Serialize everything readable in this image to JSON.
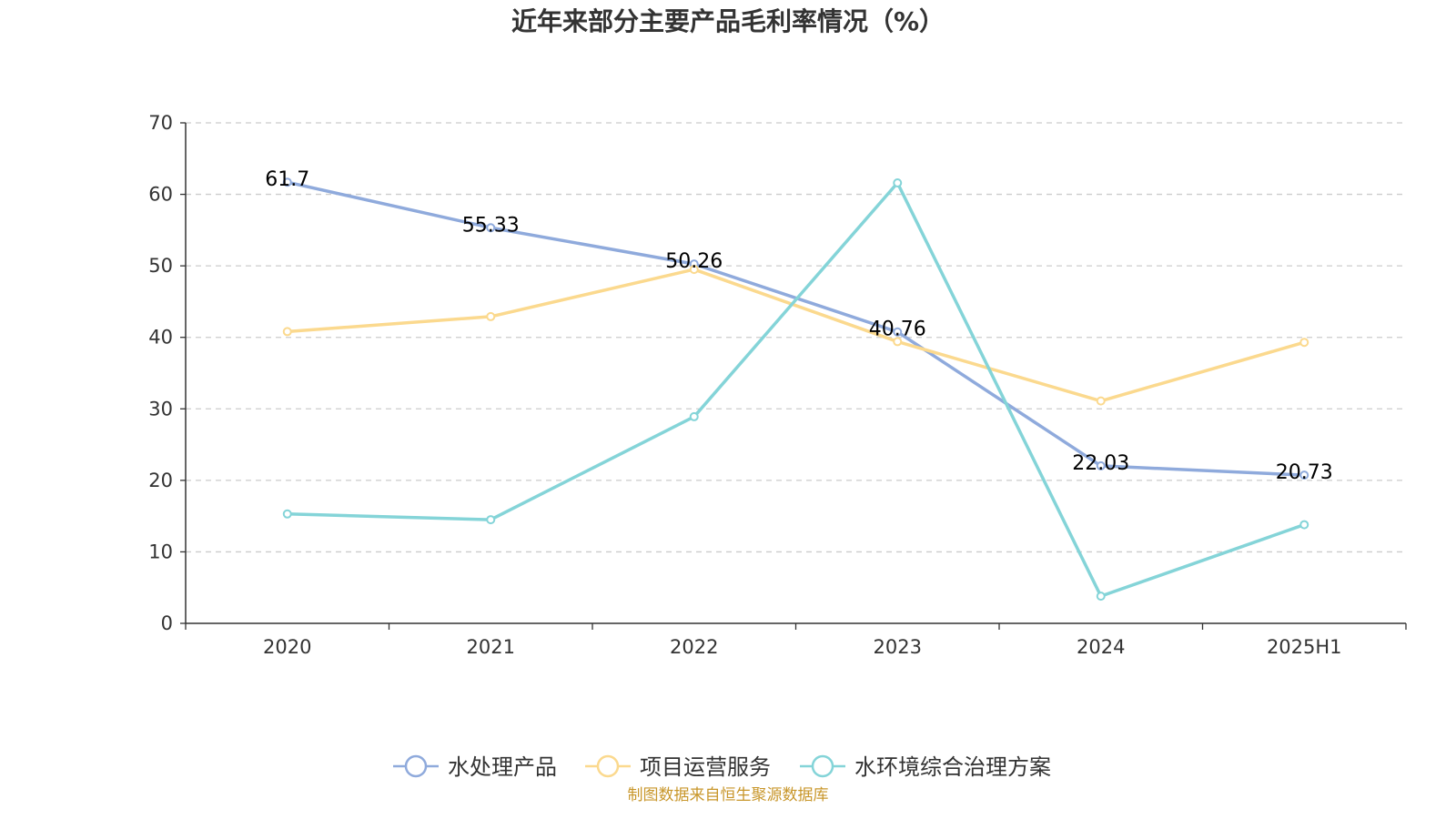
{
  "chart_data": {
    "type": "line",
    "title": "近年来部分主要产品毛利率情况（%）",
    "categories": [
      "2020",
      "2021",
      "2022",
      "2023",
      "2024",
      "2025H1"
    ],
    "ylim": [
      0,
      70
    ],
    "yticks": [
      0,
      10,
      20,
      30,
      40,
      50,
      60,
      70
    ],
    "grid": true,
    "legend_position": "bottom",
    "series": [
      {
        "name": "水处理产品",
        "color": "#8faadc",
        "values": [
          61.7,
          55.33,
          50.26,
          40.76,
          22.03,
          20.73
        ],
        "labels": [
          "61.7",
          "55.33",
          "50.26",
          "40.76",
          "22.03",
          "20.73"
        ]
      },
      {
        "name": "项目运营服务",
        "color": "#fbd98e",
        "values": [
          40.8,
          42.9,
          49.5,
          39.4,
          31.1,
          39.3
        ],
        "labels": []
      },
      {
        "name": "水环境综合治理方案",
        "color": "#84d4d8",
        "values": [
          15.3,
          14.5,
          28.9,
          61.6,
          3.8,
          13.8
        ],
        "labels": []
      }
    ],
    "source": "制图数据来自恒生聚源数据库"
  }
}
